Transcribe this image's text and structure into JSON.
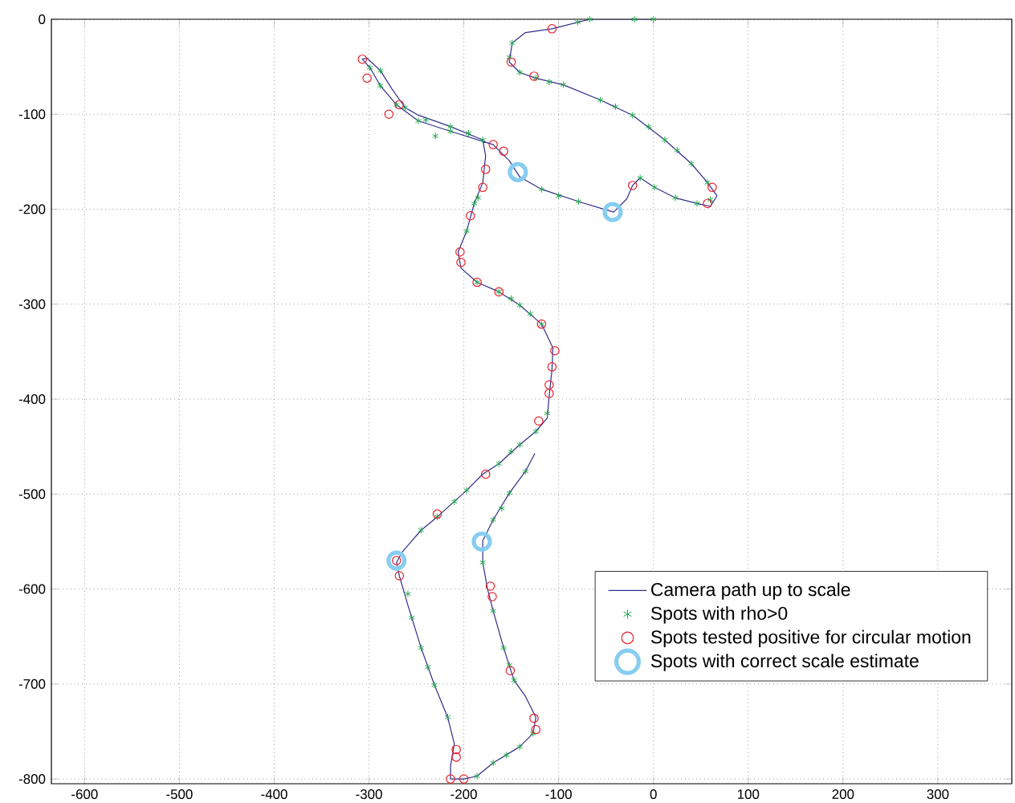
{
  "chart_data": {
    "type": "scatter",
    "xlim": [
      -635,
      378
    ],
    "ylim": [
      -805,
      0
    ],
    "xticks": [
      -600,
      -500,
      -400,
      -300,
      -200,
      -100,
      0,
      100,
      200,
      300
    ],
    "yticks": [
      -800,
      -700,
      -600,
      -500,
      -400,
      -300,
      -200,
      -100,
      0
    ],
    "grid": true,
    "legend": "bottom right",
    "series": [
      {
        "name": "Camera path up to scale",
        "type": "line",
        "color": "#2e2e8c",
        "marker": "none",
        "x": [
          0,
          -67,
          -107,
          -135,
          -149,
          -152,
          -141,
          -124,
          -95,
          -56,
          -22,
          12,
          40,
          57,
          67,
          60,
          46,
          23,
          1,
          -14,
          -22,
          -28,
          -42,
          -79,
          -118,
          -141,
          -152,
          -169,
          -214,
          -248,
          -271,
          -288,
          -299,
          -307,
          -302,
          -288,
          -276,
          -262,
          -248,
          -214,
          -180,
          -177,
          -180,
          -189,
          -197,
          -206,
          -203,
          -186,
          -163,
          -141,
          -118,
          -106,
          -107,
          -110,
          -112,
          -124,
          -141,
          -163,
          -180,
          -197,
          -228,
          -245,
          -265,
          -271,
          -268,
          -259,
          -245,
          -231,
          -217,
          -210,
          -214,
          -214,
          -200,
          -186,
          -169,
          -141,
          -127,
          -124,
          -135,
          -147,
          -158,
          -169,
          -175,
          -180,
          -180,
          -169,
          -152,
          -135,
          -125
        ],
        "values": [
          0,
          0,
          -10,
          -14,
          -25,
          -45,
          -56,
          -62,
          -69,
          -85,
          -101,
          -127,
          -152,
          -172,
          -186,
          -197,
          -194,
          -188,
          -177,
          -167,
          -175,
          -189,
          -203,
          -192,
          -179,
          -166,
          -149,
          -132,
          -118,
          -107,
          -90,
          -70,
          -51,
          -42,
          -41,
          -54,
          -73,
          -93,
          -101,
          -113,
          -127,
          -144,
          -172,
          -194,
          -223,
          -245,
          -262,
          -277,
          -287,
          -301,
          -321,
          -346,
          -369,
          -397,
          -420,
          -434,
          -448,
          -468,
          -479,
          -496,
          -524,
          -538,
          -561,
          -572,
          -586,
          -617,
          -662,
          -701,
          -735,
          -763,
          -786,
          -800,
          -800,
          -797,
          -783,
          -766,
          -752,
          -735,
          -713,
          -696,
          -662,
          -623,
          -600,
          -572,
          -549,
          -527,
          -499,
          -476,
          -457
        ]
      },
      {
        "name": "Spots with rho>0",
        "color": "#1fa84a",
        "marker": "cross",
        "x": [
          0,
          -20,
          -67,
          -80,
          -149,
          -152,
          -141,
          -124,
          -110,
          -95,
          -56,
          -40,
          -22,
          -5,
          12,
          25,
          40,
          57,
          60,
          46,
          23,
          1,
          -14,
          -79,
          -100,
          -118,
          -214,
          -230,
          -248,
          -271,
          -288,
          -299,
          -288,
          -262,
          -240,
          -214,
          -195,
          -180,
          -185,
          -189,
          -197,
          -186,
          -163,
          -150,
          -141,
          -130,
          -118,
          -112,
          -124,
          -141,
          -150,
          -163,
          -197,
          -210,
          -228,
          -245,
          -259,
          -255,
          -245,
          -238,
          -231,
          -217,
          -186,
          -169,
          -155,
          -141,
          -127,
          -147,
          -152,
          -158,
          -169,
          -180,
          -169,
          -160,
          -152,
          -135
        ],
        "values": [
          0,
          0,
          0,
          -3,
          -25,
          -40,
          -56,
          -62,
          -66,
          -69,
          -85,
          -92,
          -101,
          -113,
          -127,
          -138,
          -152,
          -172,
          -190,
          -194,
          -188,
          -177,
          -167,
          -192,
          -186,
          -179,
          -118,
          -123,
          -107,
          -90,
          -70,
          -51,
          -54,
          -93,
          -106,
          -113,
          -120,
          -127,
          -188,
          -194,
          -223,
          -277,
          -287,
          -294,
          -301,
          -310,
          -321,
          -415,
          -434,
          -448,
          -455,
          -468,
          -496,
          -508,
          -524,
          -538,
          -605,
          -630,
          -662,
          -682,
          -701,
          -735,
          -797,
          -783,
          -775,
          -766,
          -752,
          -696,
          -680,
          -662,
          -623,
          -572,
          -527,
          -515,
          -499,
          -476
        ]
      },
      {
        "name": "Spots tested positive for circular motion",
        "color": "#e8202a",
        "marker": "circle",
        "x": [
          -107,
          -150,
          -126,
          -307,
          -302,
          -268,
          -279,
          -169,
          -158,
          -177,
          -180,
          -193,
          -204,
          -203,
          -186,
          -163,
          -118,
          -104,
          -107,
          -110,
          -110,
          -121,
          -177,
          -228,
          -271,
          -268,
          -172,
          -170,
          -151,
          -126,
          -124,
          -208,
          -208,
          -214,
          -200,
          -22,
          62,
          57
        ],
        "values": [
          -10,
          -45,
          -60,
          -42,
          -62,
          -90,
          -100,
          -132,
          -139,
          -158,
          -177,
          -207,
          -245,
          -256,
          -277,
          -287,
          -321,
          -349,
          -366,
          -385,
          -394,
          -423,
          -479,
          -521,
          -570,
          -586,
          -597,
          -608,
          -686,
          -736,
          -748,
          -769,
          -777,
          -800,
          -800,
          -175,
          -177,
          -194
        ]
      },
      {
        "name": "Spots with correct scale estimate",
        "color": "#87cdf0",
        "marker": "circle",
        "x": [
          -143,
          -43,
          -271,
          -181
        ],
        "values": [
          -161,
          -203,
          -570,
          -550
        ]
      }
    ]
  }
}
